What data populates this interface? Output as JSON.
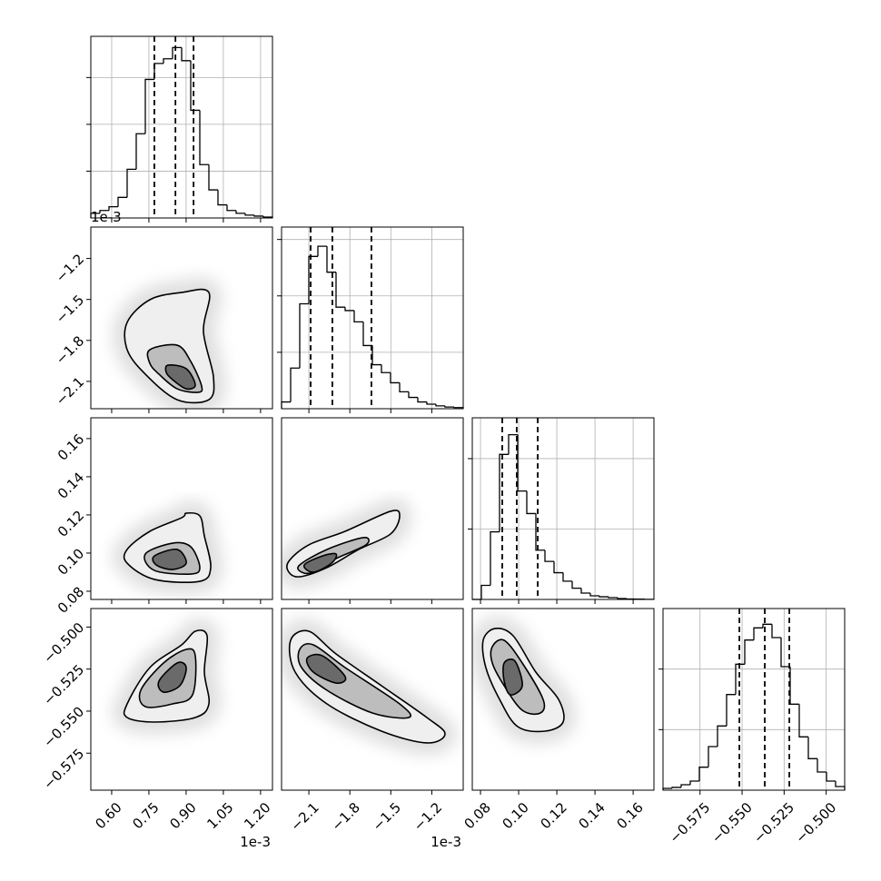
{
  "chart_data": {
    "type": "corner",
    "grid": true,
    "line_color": "#000000",
    "contour_fills": [
      "#efefef",
      "#bdbdbd",
      "#6a6a6a"
    ],
    "parameters": [
      {
        "offset_text": "1e-3",
        "xlim": [
          0.516,
          1.248
        ],
        "ticks": [
          {
            "value": 0.6,
            "label": "0.60"
          },
          0.75,
          {
            "value": 0.9,
            "label": "0.90"
          },
          1.05,
          {
            "value": 1.2,
            "label": "1.20"
          }
        ],
        "quantiles": [
          0.772,
          0.857,
          0.93
        ],
        "hist": {
          "bins": [
            0.516,
            0.5526,
            0.5892,
            0.6258,
            0.6624,
            0.699,
            0.7356,
            0.7722,
            0.8088,
            0.8454,
            0.882,
            0.9186,
            0.9552,
            0.9918,
            1.0284,
            1.065,
            1.1016,
            1.1382,
            1.1748,
            1.2114,
            1.248
          ],
          "counts": [
            5,
            8,
            12,
            22,
            52,
            90,
            148,
            165,
            170,
            182,
            168,
            115,
            57,
            30,
            14,
            8,
            5,
            3,
            2,
            1
          ],
          "ylim": [
            0,
            194
          ],
          "yticks": [
            50,
            100,
            150
          ]
        }
      },
      {
        "offset_text": "1e-3",
        "xlim": [
          -2.3,
          -0.97
        ],
        "ticks": [
          {
            "value": -2.1,
            "label": "−2.1"
          },
          {
            "value": -1.8,
            "label": "−1.8"
          },
          {
            "value": -1.5,
            "label": "−1.5"
          },
          {
            "value": -1.2,
            "label": "−1.2"
          }
        ],
        "quantiles": [
          -2.087,
          -1.928,
          -1.642
        ],
        "hist": {
          "bins": [
            -2.3,
            -2.2335,
            -2.167,
            -2.1005,
            -2.034,
            -1.9675,
            -1.901,
            -1.8345,
            -1.768,
            -1.7015,
            -1.635,
            -1.5685,
            -1.502,
            -1.4355,
            -1.369,
            -1.3025,
            -1.236,
            -1.1695,
            -1.103,
            -1.0365,
            -0.97
          ],
          "counts": [
            6,
            36,
            93,
            135,
            144,
            121,
            90,
            87,
            77,
            56,
            39,
            32,
            23,
            15,
            10,
            6,
            4,
            2.5,
            1.5,
            1
          ],
          "ylim": [
            0,
            161
          ],
          "yticks": [
            50,
            100,
            150
          ]
        }
      },
      {
        "xlim": [
          0.0757,
          0.1709
        ],
        "ticks": [
          0.08,
          {
            "value": 0.1,
            "label": "0.10"
          },
          0.12,
          0.14,
          0.16
        ],
        "quantiles": [
          0.0914,
          0.099,
          0.11
        ],
        "hist": {
          "bins": [
            0.0757,
            0.08046,
            0.08522,
            0.08998,
            0.09474,
            0.0995,
            0.10426,
            0.10902,
            0.11378,
            0.11854,
            0.1233,
            0.12806,
            0.13282,
            0.13758,
            0.14234,
            0.1471,
            0.15186,
            0.15662,
            0.16138,
            0.16614,
            0.1709
          ],
          "counts": [
            0,
            10,
            48,
            103,
            117,
            77,
            61,
            35,
            27,
            19,
            13,
            8,
            4.5,
            2.6,
            1.9,
            1.3,
            0.6,
            0.3,
            0.2,
            0.1
          ],
          "ylim": [
            0,
            129
          ],
          "yticks": [
            50,
            100
          ]
        }
      },
      {
        "xlim": [
          -0.597,
          -0.489
        ],
        "ticks": [
          {
            "value": -0.575,
            "label": "−0.575"
          },
          {
            "value": -0.55,
            "label": "−0.550"
          },
          {
            "value": -0.525,
            "label": "−0.525"
          },
          {
            "value": -0.5,
            "label": "−0.500"
          }
        ],
        "quantiles": [
          -0.5516,
          -0.5365,
          -0.5219
        ],
        "hist": {
          "bins": [
            -0.597,
            -0.5916,
            -0.5862,
            -0.5808,
            -0.5754,
            -0.57,
            -0.5646,
            -0.5592,
            -0.5538,
            -0.5484,
            -0.543,
            -0.5376,
            -0.5322,
            -0.5268,
            -0.5214,
            -0.516,
            -0.5106,
            -0.5052,
            -0.4998,
            -0.4944,
            -0.489
          ],
          "counts": [
            1.5,
            2.3,
            4.5,
            7.5,
            19,
            36,
            53,
            79,
            104,
            124,
            134,
            137,
            126,
            102,
            71,
            44,
            26,
            15,
            7.5,
            3
          ],
          "ylim": [
            0,
            150
          ],
          "yticks": [
            50,
            100
          ]
        }
      }
    ],
    "panels": [
      {
        "contours": [
          {
            "x": [
              0.6624,
              0.7539,
              0.882,
              0.9918,
              0.9698,
              1.0101,
              0.9918,
              0.8637,
              0.7356,
              0.6624
            ],
            "y": [
              -1.668,
              -1.502,
              -1.449,
              -1.449,
              -1.735,
              -2.067,
              -2.234,
              -2.234,
              -2.047,
              -1.868
            ]
          },
          {
            "x": [
              0.7539,
              0.8637,
              0.9186,
              0.9625,
              0.9479,
              0.8637,
              0.7905,
              0.7539
            ],
            "y": [
              -1.868,
              -1.835,
              -1.954,
              -2.134,
              -2.18,
              -2.154,
              -2.047,
              -1.968
            ]
          },
          {
            "x": [
              0.8271,
              0.9003,
              0.9369,
              0.9003,
              0.8454,
              0.8198
            ],
            "y": [
              -1.981,
              -2.007,
              -2.127,
              -2.154,
              -2.087,
              -2.034
            ]
          }
        ]
      },
      {
        "contours": [
          {
            "x": [
              0.6624,
              0.7539,
              0.882,
              0.9003,
              0.9552,
              0.9735,
              0.9991,
              0.9552,
              0.7722,
              0.6624
            ],
            "y": [
              0.1019,
              0.1114,
              0.1185,
              0.1209,
              0.1195,
              0.109,
              0.0924,
              0.0852,
              0.0862,
              0.0947
            ]
          },
          {
            "x": [
              0.7356,
              0.8454,
              0.9186,
              0.9552,
              0.9186,
              0.7722
            ],
            "y": [
              0.0995,
              0.1052,
              0.1033,
              0.0924,
              0.089,
              0.0909
            ]
          },
          {
            "x": [
              0.7722,
              0.8637,
              0.9003,
              0.8454,
              0.7795
            ],
            "y": [
              0.0985,
              0.1019,
              0.0947,
              0.0914,
              0.0938
            ]
          }
        ]
      },
      {
        "contours": [
          {
            "x": [
              -2.2468,
              -2.1005,
              -1.8345,
              -1.502,
              -1.4355,
              -1.502,
              -1.7348,
              -1.9675,
              -2.167,
              -2.2468
            ],
            "y": [
              0.0957,
              0.1043,
              0.1114,
              0.1219,
              0.1195,
              0.11,
              0.1019,
              0.0924,
              0.0876,
              0.09
            ]
          },
          {
            "x": [
              -2.167,
              -1.9675,
              -1.7015,
              -1.6816,
              -1.901,
              -2.0673,
              -2.1537
            ],
            "y": [
              0.0938,
              0.1019,
              0.1081,
              0.1043,
              0.0971,
              0.09,
              0.09
            ]
          },
          {
            "x": [
              -2.1338,
              -2.0008,
              -1.901,
              -1.9343,
              -2.0673
            ],
            "y": [
              0.0938,
              0.0985,
              0.0995,
              0.0947,
              0.09
            ]
          }
        ]
      },
      {
        "contours": [
          {
            "x": [
              0.6624,
              0.7539,
              0.882,
              0.9369,
              0.9845,
              0.9735,
              0.9918,
              0.9369,
              0.7722,
              0.6624
            ],
            "y": [
              -0.5457,
              -0.5241,
              -0.5106,
              -0.5025,
              -0.5052,
              -0.5268,
              -0.5457,
              -0.5538,
              -0.5565,
              -0.5538
            ]
          },
          {
            "x": [
              0.7173,
              0.8088,
              0.9003,
              0.9369,
              0.9259,
              0.8454,
              0.7356
            ],
            "y": [
              -0.5376,
              -0.5214,
              -0.5133,
              -0.5171,
              -0.5403,
              -0.5457,
              -0.5473
            ]
          },
          {
            "x": [
              0.7905,
              0.8637,
              0.9003,
              0.8747,
              0.8088
            ],
            "y": [
              -0.5322,
              -0.5214,
              -0.5241,
              -0.5349,
              -0.5387
            ]
          }
        ]
      },
      {
        "contours": [
          {
            "x": [
              -2.2335,
              -2.1005,
              -1.901,
              -1.5685,
              -1.236,
              -1.103,
              -1.236,
              -1.5685,
              -1.9675,
              -2.2003
            ],
            "y": [
              -0.5079,
              -0.5025,
              -0.516,
              -0.5349,
              -0.5538,
              -0.5635,
              -0.5689,
              -0.5619,
              -0.5457,
              -0.5268
            ]
          },
          {
            "x": [
              -2.167,
              -2.0673,
              -1.8345,
              -1.4355,
              -1.369,
              -1.635,
              -1.9675,
              -2.1537
            ],
            "y": [
              -0.5133,
              -0.5106,
              -0.5241,
              -0.5457,
              -0.5538,
              -0.5511,
              -0.5376,
              -0.5241
            ]
          },
          {
            "x": [
              -2.1138,
              -2.0008,
              -1.8345,
              -1.901,
              -2.0673
            ],
            "y": [
              -0.5187,
              -0.5171,
              -0.5295,
              -0.5333,
              -0.5268
            ]
          }
        ]
      },
      {
        "contours": [
          {
            "x": [
              0.0814,
              0.0876,
              0.0971,
              0.109,
              0.1209,
              0.1233,
              0.1138,
              0.0995,
              0.09,
              0.0828
            ],
            "y": [
              -0.5079,
              -0.5009,
              -0.5052,
              -0.5268,
              -0.543,
              -0.5565,
              -0.5619,
              -0.5592,
              -0.543,
              -0.5241
            ]
          },
          {
            "x": [
              0.0862,
              0.0924,
              0.1019,
              0.1128,
              0.1114,
              0.1019,
              0.0924,
              0.0862
            ],
            "y": [
              -0.5117,
              -0.5079,
              -0.5214,
              -0.543,
              -0.5511,
              -0.5495,
              -0.5349,
              -0.5214
            ]
          },
          {
            "x": [
              0.0924,
              0.0981,
              0.1019,
              0.0957,
              0.0924
            ],
            "y": [
              -0.5214,
              -0.5203,
              -0.5349,
              -0.5403,
              -0.5322
            ]
          }
        ]
      }
    ]
  }
}
